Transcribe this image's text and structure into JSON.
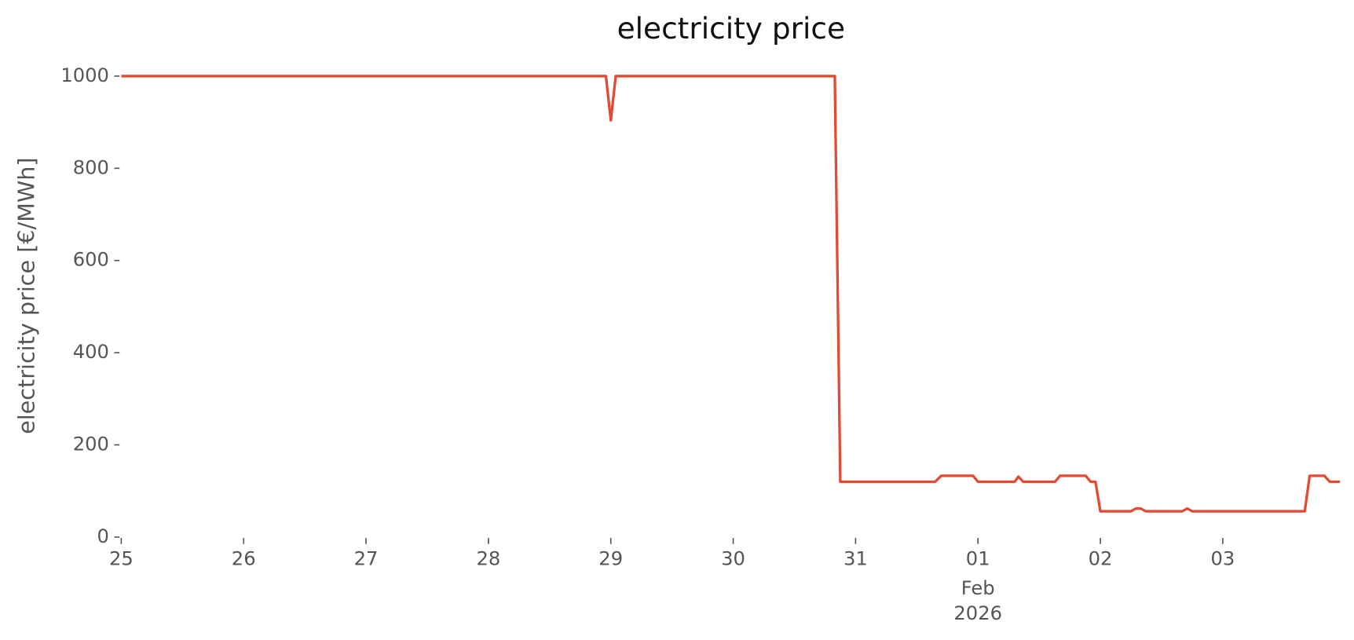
{
  "chart_data": {
    "type": "line",
    "title": "electricity price",
    "ylabel": "electricity price [€/MWh]",
    "x_sublabel": "Feb",
    "x_year_label": "2026",
    "x": [
      0,
      3.96,
      4.0,
      4.04,
      5.83,
      5.875,
      6.65,
      6.7,
      6.96,
      7.0,
      7.3,
      7.33,
      7.37,
      7.63,
      7.67,
      7.88,
      7.92,
      7.96,
      8.0,
      8.25,
      8.29,
      8.33,
      8.37,
      8.67,
      8.71,
      8.75,
      9.67,
      9.71,
      9.83,
      9.875,
      9.958
    ],
    "series": [
      {
        "name": "electricity price",
        "color": "#e24a33",
        "values": [
          1000,
          1000,
          904,
          1000,
          1000,
          120,
          120,
          133,
          133,
          120,
          120,
          131,
          120,
          120,
          133,
          133,
          120,
          120,
          56,
          56,
          62,
          62,
          56,
          56,
          62,
          56,
          56,
          133,
          133,
          120,
          120
        ]
      }
    ],
    "xlim": [
      0,
      9.958
    ],
    "xticks": [
      {
        "value": 0,
        "label": "25"
      },
      {
        "value": 1,
        "label": "26"
      },
      {
        "value": 2,
        "label": "27"
      },
      {
        "value": 3,
        "label": "28"
      },
      {
        "value": 4,
        "label": "29"
      },
      {
        "value": 5,
        "label": "30"
      },
      {
        "value": 6,
        "label": "31"
      },
      {
        "value": 7,
        "label": "01"
      },
      {
        "value": 8,
        "label": "02"
      },
      {
        "value": 9,
        "label": "03"
      }
    ],
    "ylim": [
      0,
      1000
    ],
    "yticks": [
      0,
      200,
      400,
      600,
      800,
      1000
    ],
    "grid": false
  }
}
